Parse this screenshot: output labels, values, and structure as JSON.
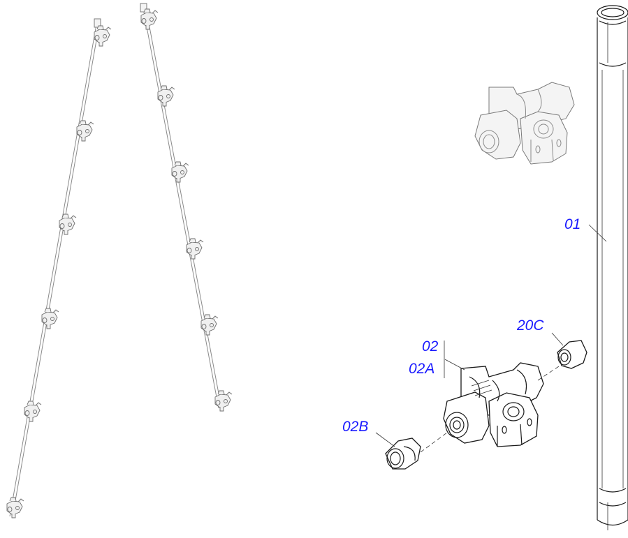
{
  "colors": {
    "callout_text": "#1a1aff",
    "line": "#1a1a1a",
    "ghost": "#8a8a8a",
    "background": "#ffffff"
  },
  "callouts": {
    "c01": "01",
    "c02": "02",
    "c02A": "02A",
    "c02B": "02B",
    "c20C": "20C"
  },
  "icons": {
    "boom_left": "spray-boom-icon",
    "boom_right": "spray-boom-icon",
    "ghost_body": "nozzle-body-ghost-icon",
    "pipe": "pipe-icon",
    "nozzle_body": "nozzle-body-icon",
    "cap_02B": "nozzle-cap-icon",
    "plug_20C": "end-plug-icon"
  }
}
